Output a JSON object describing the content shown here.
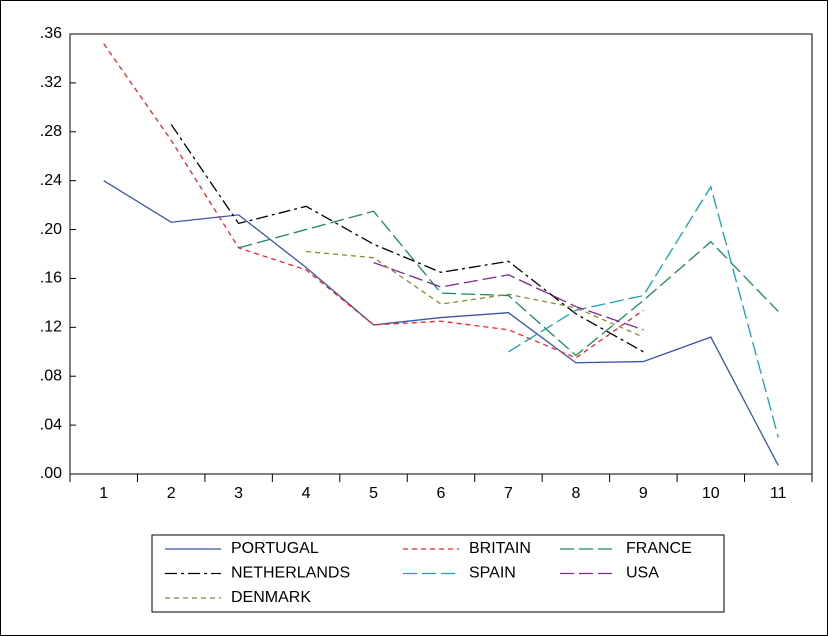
{
  "chart_data": {
    "type": "line",
    "categories": [
      "1",
      "2",
      "3",
      "4",
      "5",
      "6",
      "7",
      "8",
      "9",
      "10",
      "11"
    ],
    "ylim": [
      0,
      0.36
    ],
    "yticks": [
      {
        "value": 0,
        "label": ".00"
      },
      {
        "value": 0.04,
        "label": ".04"
      },
      {
        "value": 0.08,
        "label": ".08"
      },
      {
        "value": 0.12,
        "label": ".12"
      },
      {
        "value": 0.16,
        "label": ".16"
      },
      {
        "value": 0.2,
        "label": ".20"
      },
      {
        "value": 0.24,
        "label": ".24"
      },
      {
        "value": 0.28,
        "label": ".28"
      },
      {
        "value": 0.32,
        "label": ".32"
      },
      {
        "value": 0.36,
        "label": ".36"
      }
    ],
    "legend": "bottom",
    "series": [
      {
        "name": "PORTUGAL",
        "color": "#3a55a4",
        "dash": "solid",
        "values": [
          0.24,
          0.206,
          0.212,
          0.169,
          0.122,
          0.128,
          0.132,
          0.091,
          0.092,
          0.112,
          0.007
        ]
      },
      {
        "name": "BRITAIN",
        "color": "#e8262c",
        "dash": "dashed",
        "values": [
          0.352,
          0.273,
          0.185,
          0.167,
          0.122,
          0.125,
          0.118,
          0.095,
          0.134,
          null,
          null
        ]
      },
      {
        "name": "FRANCE",
        "color": "#1b8a5a",
        "dash": "longdash",
        "values": [
          null,
          null,
          0.185,
          0.2,
          0.215,
          0.148,
          0.146,
          0.097,
          0.142,
          0.19,
          0.133
        ]
      },
      {
        "name": "NETHERLANDS",
        "color": "#000000",
        "dash": "dashdot",
        "values": [
          null,
          0.286,
          0.205,
          0.219,
          0.188,
          0.165,
          0.174,
          0.131,
          0.1,
          null,
          null
        ]
      },
      {
        "name": "SPAIN",
        "color": "#17a2b0",
        "dash": "longdash",
        "values": [
          null,
          null,
          null,
          null,
          null,
          null,
          0.1,
          0.134,
          0.146,
          0.235,
          0.03
        ]
      },
      {
        "name": "USA",
        "color": "#7b2a8a",
        "dash": "longdash",
        "values": [
          null,
          null,
          null,
          null,
          0.173,
          0.153,
          0.163,
          0.137,
          0.118,
          null,
          null
        ]
      },
      {
        "name": "DENMARK",
        "color": "#8a8a30",
        "dash": "dashed",
        "values": [
          null,
          null,
          null,
          0.182,
          0.177,
          0.139,
          0.147,
          0.136,
          0.112,
          null,
          null
        ]
      }
    ]
  }
}
